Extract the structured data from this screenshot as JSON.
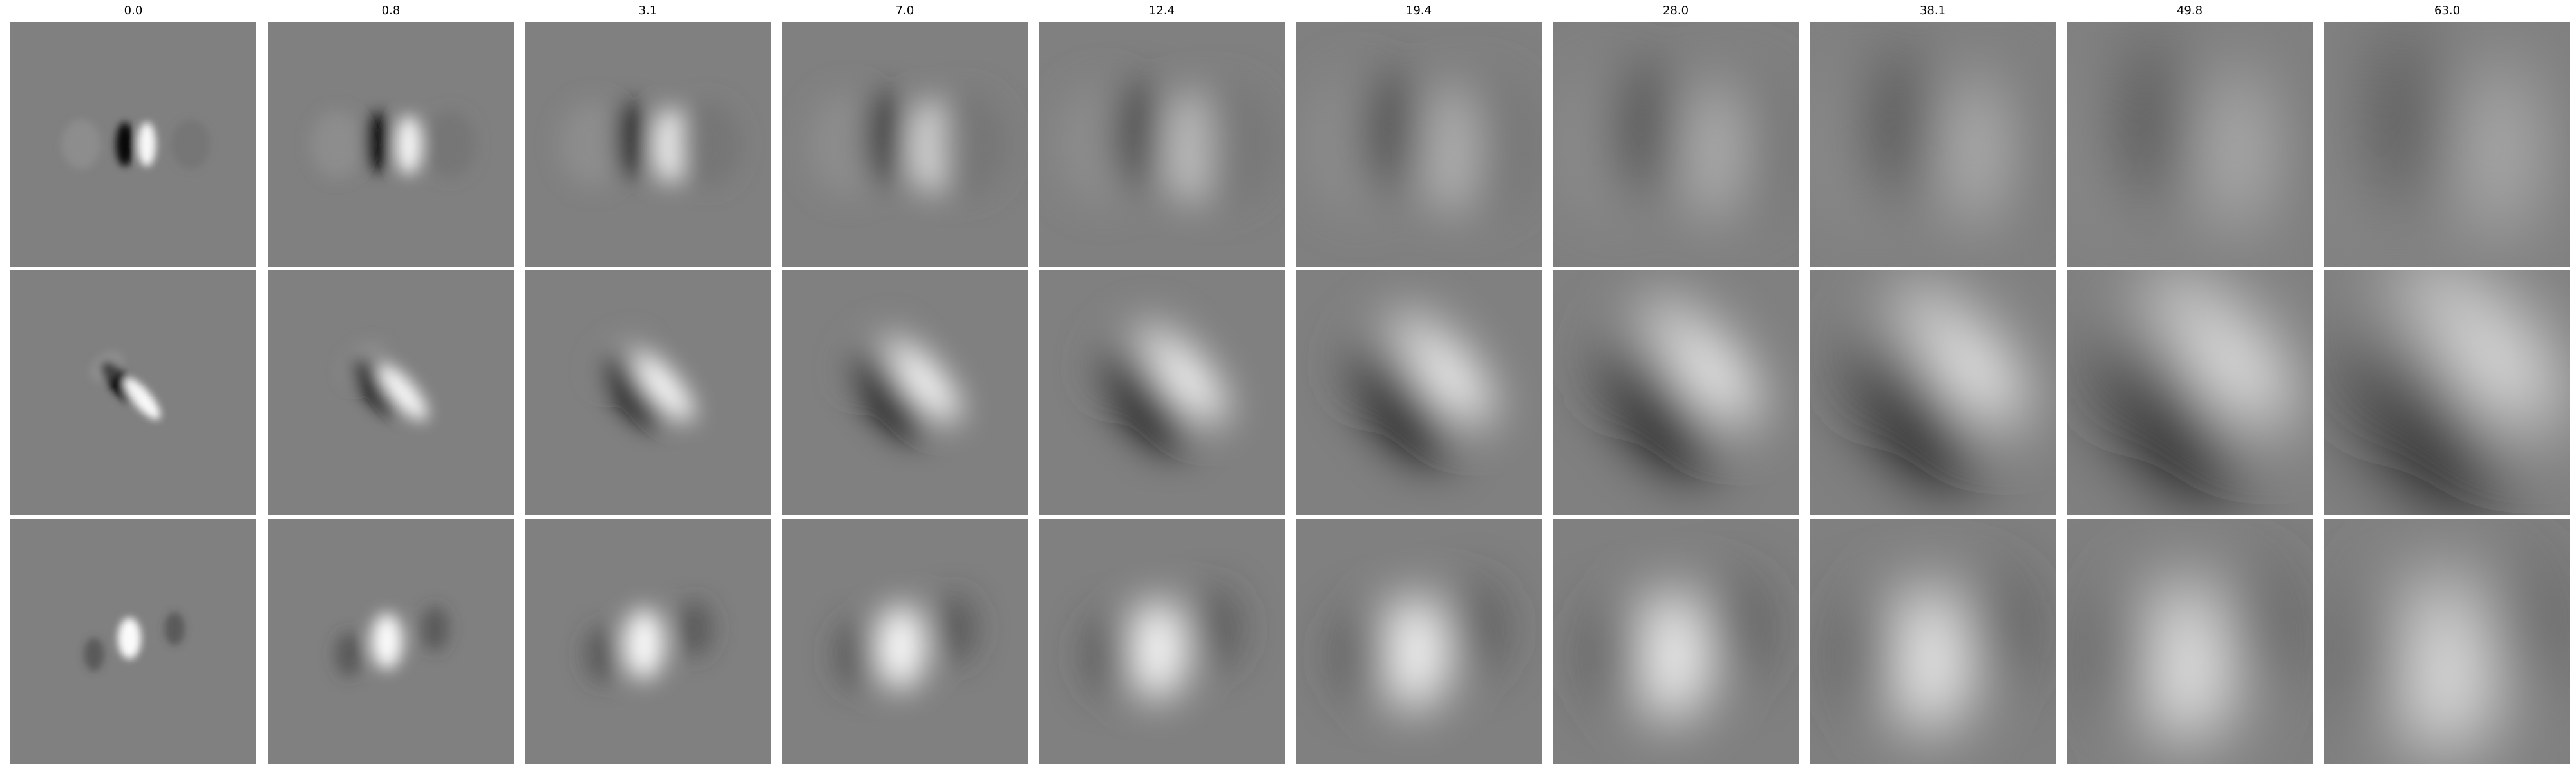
{
  "column_titles": [
    "0.0",
    "0.8",
    "3.1",
    "7.0",
    "12.4",
    "19.4",
    "28.0",
    "38.1",
    "49.8",
    "63.0"
  ],
  "rows": 3,
  "colors": {
    "background": "#ffffff",
    "neutral_gray": "#808080",
    "dark": "#000000",
    "light": "#ffffff"
  }
}
